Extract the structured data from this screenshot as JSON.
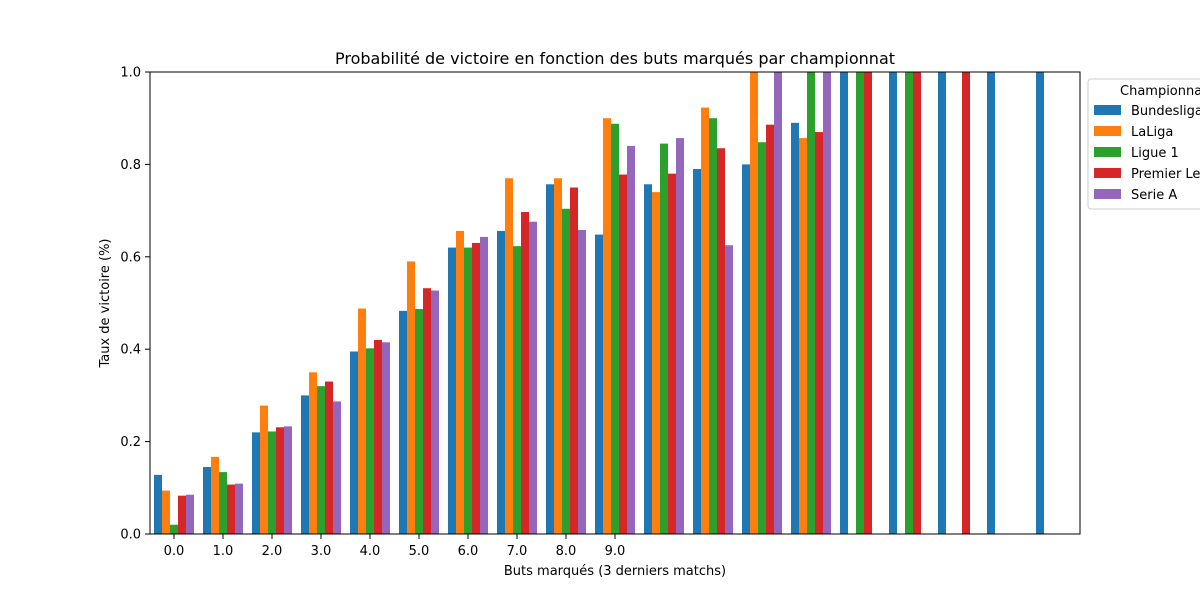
{
  "chart_data": {
    "type": "bar",
    "title": "Probabilité de victoire en fonction des buts marqués par championnat",
    "xlabel": "Buts marqués (3 derniers matchs)",
    "ylabel": "Taux de victoire (%)",
    "ylim": [
      0,
      1.0
    ],
    "yticks": [
      "0.0",
      "0.2",
      "0.4",
      "0.6",
      "0.8",
      "1.0"
    ],
    "x_tick_labels": [
      "0.0",
      "1.0",
      "2.0",
      "3.0",
      "4.0",
      "5.0",
      "6.0",
      "7.0",
      "8.0",
      "9.0"
    ],
    "category_count": 19,
    "grid": false,
    "legend": {
      "title": "Championnat",
      "placement": "outside-right",
      "entries": [
        "Bundesliga",
        "LaLiga",
        "Ligue 1",
        "Premier League",
        "Serie A"
      ]
    },
    "series": [
      {
        "name": "Bundesliga",
        "color": "#1f77b4",
        "values": [
          0.128,
          0.145,
          0.22,
          0.3,
          0.395,
          0.483,
          0.62,
          0.656,
          0.757,
          0.648,
          0.757,
          0.79,
          0.8,
          0.89,
          1.0,
          1.0,
          1.0,
          1.0,
          1.0
        ]
      },
      {
        "name": "LaLiga",
        "color": "#ff7f0e",
        "values": [
          0.094,
          0.167,
          0.278,
          0.35,
          0.488,
          0.59,
          0.656,
          0.77,
          0.77,
          0.9,
          0.74,
          0.923,
          1.0,
          0.857,
          null,
          null,
          null,
          null,
          null
        ]
      },
      {
        "name": "Ligue 1",
        "color": "#2ca02c",
        "values": [
          0.02,
          0.134,
          0.222,
          0.32,
          0.402,
          0.487,
          0.62,
          0.623,
          0.704,
          0.888,
          0.845,
          0.9,
          0.848,
          1.0,
          1.0,
          1.0,
          null,
          null,
          null
        ]
      },
      {
        "name": "Premier League",
        "color": "#d62728",
        "values": [
          0.083,
          0.107,
          0.231,
          0.33,
          0.42,
          0.532,
          0.63,
          0.697,
          0.75,
          0.778,
          0.78,
          0.835,
          0.886,
          0.87,
          1.0,
          1.0,
          1.0,
          null,
          null
        ]
      },
      {
        "name": "Serie A",
        "color": "#9467bd",
        "values": [
          0.085,
          0.109,
          0.233,
          0.287,
          0.415,
          0.527,
          0.643,
          0.676,
          0.658,
          0.84,
          0.857,
          0.625,
          1.0,
          1.0,
          null,
          null,
          null,
          null,
          null
        ]
      }
    ]
  }
}
